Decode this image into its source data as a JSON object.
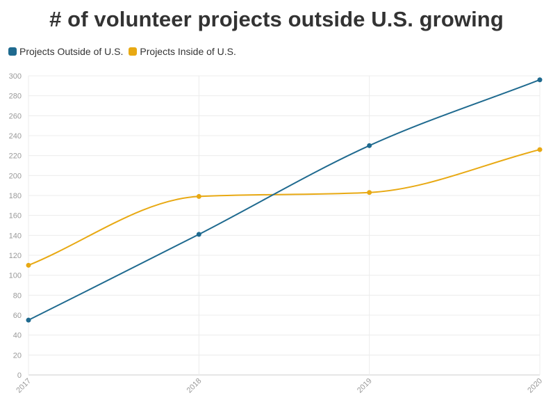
{
  "chart_data": {
    "type": "line",
    "title": "# of volunteer projects outside U.S. growing",
    "categories": [
      "2017",
      "2018",
      "2019",
      "2020"
    ],
    "series": [
      {
        "name": "Projects Outside of U.S.",
        "color": "#1f6a8f",
        "values": [
          55,
          141,
          230,
          296
        ]
      },
      {
        "name": "Projects Inside of U.S.",
        "color": "#e8a913",
        "values": [
          110,
          179,
          183,
          226
        ]
      }
    ],
    "yticks": [
      "0",
      "20",
      "40",
      "60",
      "80",
      "100",
      "120",
      "140",
      "160",
      "180",
      "200",
      "220",
      "240",
      "260",
      "280",
      "300"
    ],
    "ylim": [
      0,
      300
    ],
    "xlabel": "",
    "ylabel": "",
    "grid": true,
    "legend_position": "top-left",
    "smooth": true
  }
}
